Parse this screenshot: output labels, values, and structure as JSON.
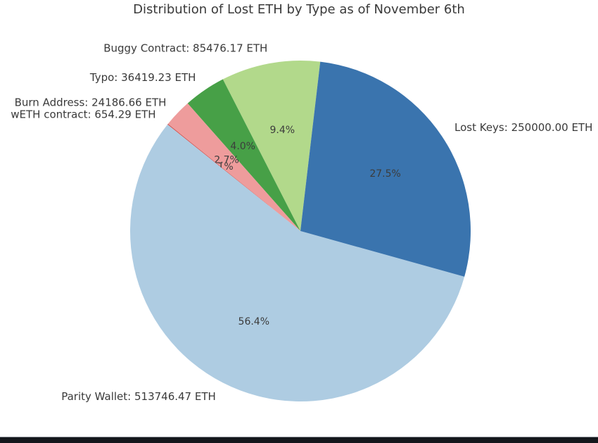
{
  "page": {
    "background_color": "#ffffff",
    "footer_bar_color": "#14171c"
  },
  "chart_data": {
    "type": "pie",
    "title": "Distribution of Lost ETH by Type as of November 6th",
    "unit": "ETH",
    "start_angle_deg": 83.3,
    "direction": "counterclockwise",
    "label_distance": 1.09,
    "pct_distance": 0.6,
    "text_color": "#3a3a3a",
    "pct_text_color": "#3c3c3c",
    "legend": "none",
    "slices": [
      {
        "name": "Buggy Contract",
        "value": 85476.17,
        "pct_label": "9.4%",
        "outer_label": "Buggy Contract: 85476.17 ETH",
        "color": "#b2d98b"
      },
      {
        "name": "Typo",
        "value": 36419.23,
        "pct_label": "4.0%",
        "outer_label": "Typo: 36419.23 ETH",
        "color": "#47a047"
      },
      {
        "name": "Burn Address",
        "value": 24186.66,
        "pct_label": "2.7%",
        "outer_label": "Burn Address: 24186.66 ETH",
        "color": "#ee9c9c"
      },
      {
        "name": "wETH contract",
        "value": 654.29,
        "pct_label": "0.1%",
        "outer_label": "wETH contract: 654.29 ETH",
        "color": "#cf4b48"
      },
      {
        "name": "Parity Wallet",
        "value": 513746.47,
        "pct_label": "56.4%",
        "outer_label": "Parity Wallet: 513746.47 ETH",
        "color": "#aecce2"
      },
      {
        "name": "Lost Keys",
        "value": 250000.0,
        "pct_label": "27.5%",
        "outer_label": "Lost Keys: 250000.00 ETH",
        "color": "#3a74ae"
      }
    ]
  }
}
